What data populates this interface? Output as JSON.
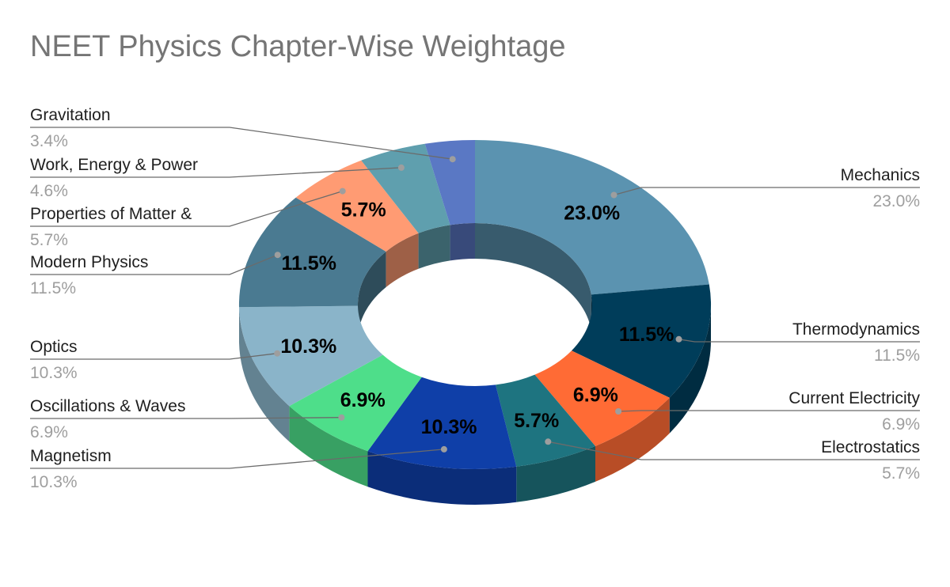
{
  "chart_data": {
    "type": "pie",
    "style": "3d-donut",
    "title": "NEET Physics Chapter-Wise Weightage",
    "slices": [
      {
        "name": "Mechanics",
        "value": 23.0,
        "label": "23.0%",
        "color": "#5b93b0",
        "side": "right"
      },
      {
        "name": "Thermodynamics",
        "value": 11.5,
        "label": "11.5%",
        "color": "#003d5a",
        "side": "right"
      },
      {
        "name": "Current Electricity",
        "value": 6.9,
        "label": "6.9%",
        "color": "#ff6b35",
        "side": "right"
      },
      {
        "name": "Electrostatics",
        "value": 5.7,
        "label": "5.7%",
        "color": "#1e7480",
        "side": "right"
      },
      {
        "name": "Magnetism",
        "value": 10.3,
        "label": "10.3%",
        "color": "#0f3fa8",
        "side": "left"
      },
      {
        "name": "Oscillations & Waves",
        "value": 6.9,
        "label": "6.9%",
        "color": "#4ede8a",
        "side": "left"
      },
      {
        "name": "Optics",
        "value": 10.3,
        "label": "10.3%",
        "color": "#8ab4c9",
        "side": "left"
      },
      {
        "name": "Modern Physics",
        "value": 11.5,
        "label": "11.5%",
        "color": "#4a7a91",
        "side": "left"
      },
      {
        "name": "Properties of Matter &",
        "value": 5.7,
        "label": "5.7%",
        "color": "#ff9b73",
        "side": "left"
      },
      {
        "name": "Work, Energy & Power",
        "value": 4.6,
        "label": "4.6%",
        "color": "#5f9fae",
        "side": "left"
      },
      {
        "name": "Gravitation",
        "value": 3.4,
        "label": "3.4%",
        "color": "#5a78c4",
        "side": "left"
      }
    ],
    "inner_labels_shown_for": [
      "Mechanics",
      "Thermodynamics",
      "Current Electricity",
      "Electrostatics",
      "Magnetism",
      "Oscillations & Waves",
      "Optics",
      "Modern Physics",
      "Properties of Matter &"
    ],
    "legend": "none",
    "grid": false
  }
}
